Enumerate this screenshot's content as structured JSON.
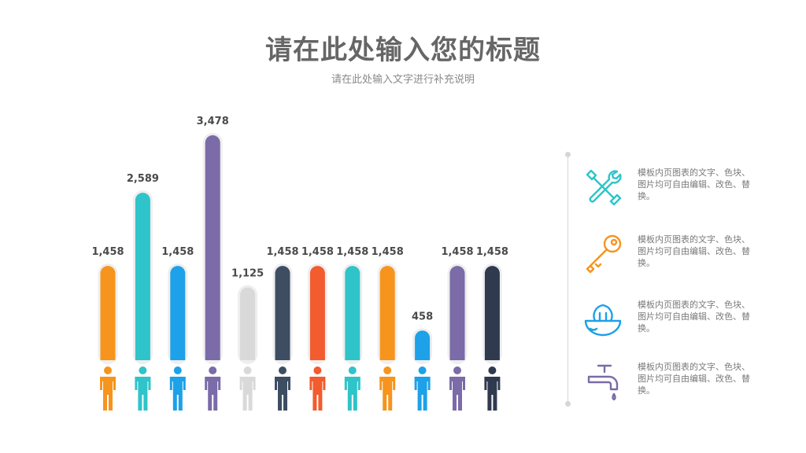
{
  "header": {
    "title": "请在此处输入您的标题",
    "subtitle": "请在此处输入文字进行补充说明"
  },
  "chart_data": {
    "type": "bar",
    "categories": [
      "",
      "",
      "",
      "",
      "",
      "",
      "",
      "",
      "",
      "",
      "",
      ""
    ],
    "values": [
      1458,
      2589,
      1458,
      3478,
      1125,
      1458,
      1458,
      1458,
      1458,
      458,
      1458,
      1458
    ],
    "value_labels": [
      "1,458",
      "2,589",
      "1,458",
      "3,478",
      "1,125",
      "1,458",
      "1,458",
      "1,458",
      "1,458",
      "458",
      "1,458",
      "1,458"
    ],
    "colors": [
      "#F7941D",
      "#2EC4C9",
      "#1DA1E8",
      "#7B6BA8",
      "#D9D9D9",
      "#3D4E63",
      "#F25C2E",
      "#2EC4C9",
      "#F7941D",
      "#1DA1E8",
      "#7B6BA8",
      "#2F3A4F"
    ],
    "title": "",
    "xlabel": "",
    "ylabel": "",
    "grid": false,
    "legend": "none"
  },
  "features": [
    {
      "icon": "tools-icon",
      "color": "#2EC4C9",
      "text": "模板内页图表的文字、色块、图片均可自由编辑、改色、替换。"
    },
    {
      "icon": "key-icon",
      "color": "#F7941D",
      "text": "模板内页图表的文字、色块、图片均可自由编辑、改色、替换。"
    },
    {
      "icon": "bowl-icon",
      "color": "#1DA1E8",
      "text": "模板内页图表的文字、色块、图片均可自由编辑、改色、替换。"
    },
    {
      "icon": "faucet-icon",
      "color": "#7B6BA8",
      "text": "模板内页图表的文字、色块、图片均可自由编辑、改色、替换。"
    }
  ]
}
